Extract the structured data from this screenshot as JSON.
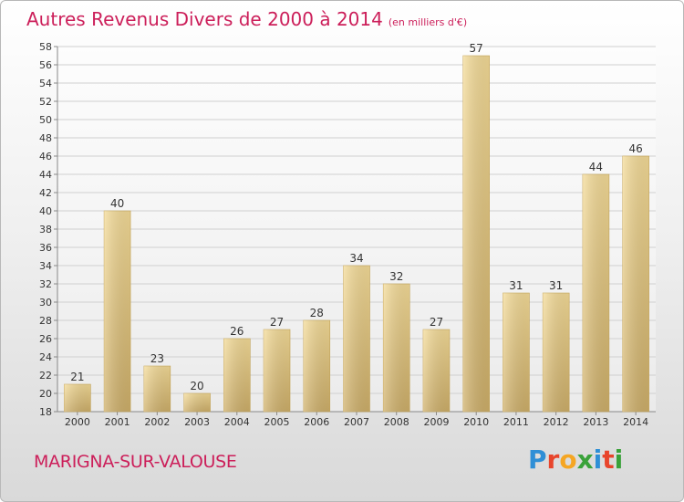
{
  "header": {
    "title": "Autres Revenus Divers de 2000 à 2014",
    "subtitle": "(en milliers d'€)"
  },
  "footer": {
    "commune": "MARIGNA-SUR-VALOUSE",
    "logo": {
      "letters": [
        "P",
        "r",
        "o",
        "x",
        "i",
        "t",
        "i"
      ],
      "colors": [
        "#2f8fd6",
        "#e8452c",
        "#f5a623",
        "#3aa23a",
        "#2f8fd6",
        "#e8452c",
        "#3aa23a"
      ]
    }
  },
  "chart_data": {
    "type": "bar",
    "categories": [
      "2000",
      "2001",
      "2002",
      "2003",
      "2004",
      "2005",
      "2006",
      "2007",
      "2008",
      "2009",
      "2010",
      "2011",
      "2012",
      "2013",
      "2014"
    ],
    "values": [
      21,
      40,
      23,
      20,
      26,
      27,
      28,
      34,
      32,
      27,
      57,
      31,
      31,
      44,
      46
    ],
    "ylim": [
      18,
      58
    ],
    "ytick_step": 2,
    "grid": "horizontal",
    "bar_color": "#e8c97a"
  }
}
